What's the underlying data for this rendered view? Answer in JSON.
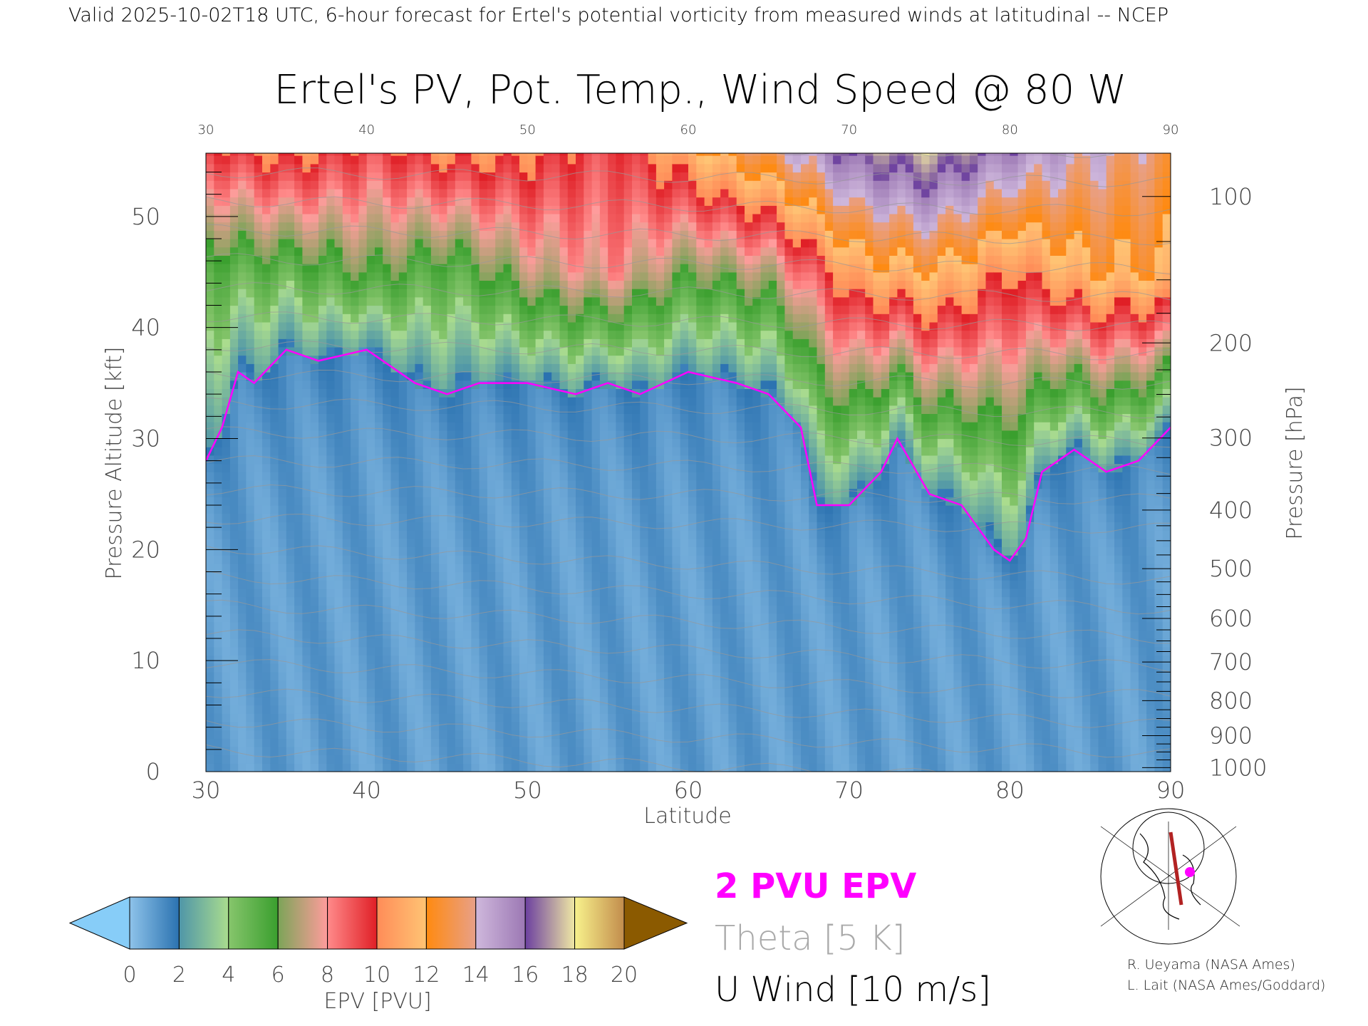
{
  "header": {
    "subtitle": "Valid 2025-10-02T18 UTC, 6-hour forecast for Ertel's potential vorticity from measured winds at latitudinal -- NCEP",
    "title": "Ertel's PV, Pot. Temp., Wind Speed @ 80 W"
  },
  "chart_data": {
    "type": "heatmap",
    "title": "Ertel's PV, Pot. Temp., Wind Speed @ 80 W",
    "xlabel": "Latitude",
    "ylabel": "Pressure Altitude [kft]",
    "y2label": "Pressure [hPa]",
    "xlim": [
      30,
      90
    ],
    "ylim": [
      0,
      55.7
    ],
    "x_ticks": [
      "30",
      "40",
      "50",
      "60",
      "70",
      "80",
      "90"
    ],
    "y_ticks": [
      "0",
      "10",
      "20",
      "30",
      "40",
      "50"
    ],
    "y2_ticks": [
      "100",
      "200",
      "300",
      "400",
      "500",
      "600",
      "700",
      "800",
      "900",
      "1000"
    ],
    "field_latitudes": [
      30,
      35,
      40,
      45,
      50,
      55,
      60,
      65,
      70,
      75,
      80,
      85,
      90
    ],
    "tropopause_2pvu_kft": [
      [
        30,
        28
      ],
      [
        31,
        31
      ],
      [
        32,
        36
      ],
      [
        33,
        35
      ],
      [
        35,
        38
      ],
      [
        37,
        37
      ],
      [
        40,
        38
      ],
      [
        43,
        35
      ],
      [
        45,
        34
      ],
      [
        47,
        35
      ],
      [
        50,
        35
      ],
      [
        53,
        34
      ],
      [
        55,
        35
      ],
      [
        57,
        34
      ],
      [
        60,
        36
      ],
      [
        63,
        35
      ],
      [
        65,
        34
      ],
      [
        67,
        31
      ],
      [
        68,
        24
      ],
      [
        70,
        24
      ],
      [
        72,
        27
      ],
      [
        73,
        30
      ],
      [
        75,
        25
      ],
      [
        77,
        24
      ],
      [
        79,
        20
      ],
      [
        80,
        19
      ],
      [
        81,
        21
      ],
      [
        82,
        27
      ],
      [
        84,
        29
      ],
      [
        86,
        27
      ],
      [
        88,
        28
      ],
      [
        90,
        31
      ]
    ],
    "epv_at_45kft_pvu": [
      5,
      5,
      6,
      5,
      7,
      8,
      6,
      7,
      11,
      12,
      10,
      12,
      12
    ],
    "epv_at_55kft_pvu": [
      9,
      10,
      9,
      10,
      10,
      9,
      11,
      13,
      16,
      17,
      15,
      14,
      13
    ],
    "epv_troposphere_pvu": 1.0,
    "colorbar": {
      "label": "EPV [PVU]",
      "ticks": [
        "0",
        "2",
        "4",
        "6",
        "8",
        "10",
        "12",
        "14",
        "16",
        "18",
        "20"
      ],
      "bins": [
        {
          "from": 0,
          "to": 2,
          "colors": [
            "#8ec3ea",
            "#2b72b0"
          ]
        },
        {
          "from": 2,
          "to": 4,
          "colors": [
            "#4f96a8",
            "#aadc8e"
          ]
        },
        {
          "from": 4,
          "to": 6,
          "colors": [
            "#86c56c",
            "#3a9f2e"
          ]
        },
        {
          "from": 6,
          "to": 8,
          "colors": [
            "#7ca458",
            "#ff9c9c"
          ]
        },
        {
          "from": 8,
          "to": 10,
          "colors": [
            "#ff8a8a",
            "#e01f26"
          ]
        },
        {
          "from": 10,
          "to": 12,
          "colors": [
            "#ff8c58",
            "#ffc474"
          ]
        },
        {
          "from": 12,
          "to": 14,
          "colors": [
            "#ff8a10",
            "#e8a088"
          ]
        },
        {
          "from": 14,
          "to": 16,
          "colors": [
            "#cfb8dc",
            "#9c78b4"
          ]
        },
        {
          "from": 16,
          "to": 18,
          "colors": [
            "#6c40a0",
            "#f0e8a4"
          ]
        },
        {
          "from": 18,
          "to": 20,
          "colors": [
            "#f8f28c",
            "#c28c4c"
          ]
        }
      ],
      "under_color": "#87cdf8",
      "over_color": "#8b5a00"
    },
    "legend": [
      {
        "label": "2 PVU EPV",
        "color": "#ff00ff"
      },
      {
        "label": "Theta [5 K]",
        "color": "#aaaaaa"
      },
      {
        "label": "U Wind [10 m/s]",
        "color": "#000000"
      }
    ],
    "grid": false
  },
  "credits": [
    "R. Ueyama (NASA Ames)",
    "L. Lait (NASA Ames/Goddard)"
  ]
}
